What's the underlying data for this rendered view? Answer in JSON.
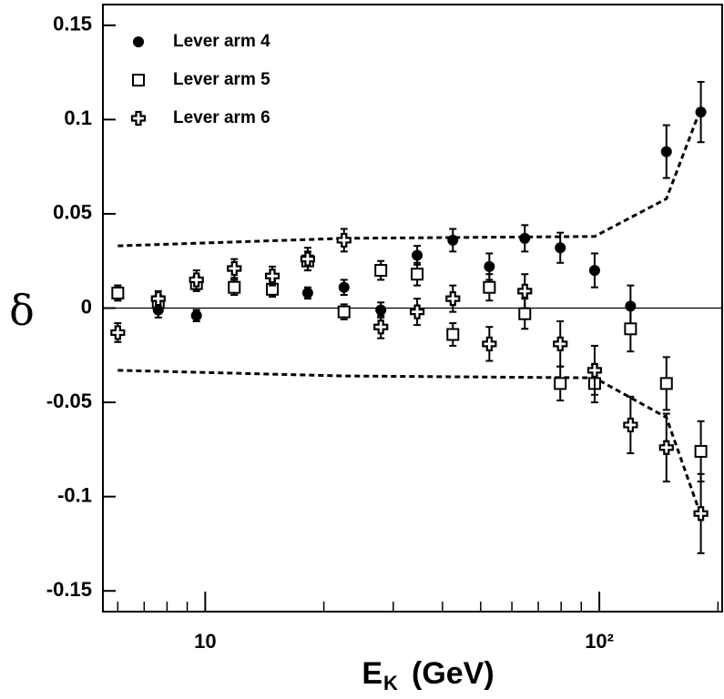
{
  "chart_data": {
    "type": "scatter",
    "ylabel": "δ",
    "xlabel": "E",
    "xlabel_sub": "K",
    "xlabel_unit": "(GeV)",
    "log_x": true,
    "xlim": [
      5.5,
      205
    ],
    "xticks": [
      10,
      {
        "value": 100,
        "label": "10²"
      }
    ],
    "xminorticks": [
      6,
      7,
      8,
      9,
      20,
      30,
      40,
      50,
      60,
      70,
      80,
      90,
      200
    ],
    "ylim": [
      -0.161,
      0.161
    ],
    "yticks": [
      0.15,
      0.1,
      0.05,
      0,
      -0.05,
      -0.1,
      -0.15
    ],
    "zero_line": true,
    "legend": "upper left",
    "x": [
      6.0,
      7.6,
      9.5,
      11.85,
      14.8,
      18.2,
      22.5,
      27.9,
      34.5,
      42.5,
      52.6,
      64.7,
      79.6,
      97.3,
      120,
      148,
      181
    ],
    "series": [
      {
        "name": "Lever arm 4",
        "marker": "circle",
        "color": "#000000",
        "values": [
          0.008,
          -0.001,
          -0.004,
          0.011,
          0.011,
          0.008,
          0.011,
          -0.001,
          0.028,
          0.036,
          0.022,
          0.037,
          0.032,
          0.02,
          0.001,
          0.083,
          0.104
        ],
        "errors": [
          0.004,
          0.004,
          0.003,
          0.004,
          0.004,
          0.003,
          0.004,
          0.004,
          0.005,
          0.006,
          0.007,
          0.007,
          0.008,
          0.009,
          0.011,
          0.014,
          0.016
        ]
      },
      {
        "name": "Lever arm 5",
        "marker": "square",
        "color": "#000000",
        "values": [
          0.008,
          0.003,
          0.013,
          0.011,
          0.01,
          0.025,
          -0.002,
          0.02,
          0.018,
          -0.014,
          0.011,
          -0.003,
          -0.04,
          -0.04,
          -0.011,
          -0.04,
          -0.076
        ],
        "errors": [
          0.004,
          0.004,
          0.004,
          0.004,
          0.004,
          0.005,
          0.004,
          0.005,
          0.006,
          0.006,
          0.007,
          0.008,
          0.009,
          0.01,
          0.012,
          0.014,
          0.016
        ]
      },
      {
        "name": "Lever arm 6",
        "marker": "cross",
        "color": "#000000",
        "values": [
          -0.013,
          0.005,
          0.015,
          0.021,
          0.017,
          0.026,
          0.036,
          -0.01,
          -0.002,
          0.005,
          -0.019,
          0.009,
          -0.019,
          -0.033,
          -0.062,
          -0.074,
          -0.109
        ],
        "errors": [
          0.005,
          0.004,
          0.005,
          0.005,
          0.005,
          0.006,
          0.006,
          0.006,
          0.007,
          0.007,
          0.009,
          0.009,
          0.012,
          0.013,
          0.015,
          0.018,
          0.021
        ]
      }
    ],
    "bands": {
      "x": [
        6.0,
        22.5,
        97.3,
        148,
        181
      ],
      "upper": [
        0.033,
        0.037,
        0.038,
        0.058,
        0.106
      ],
      "lower": [
        -0.033,
        -0.036,
        -0.037,
        -0.058,
        -0.11
      ],
      "color": "#000000"
    }
  }
}
